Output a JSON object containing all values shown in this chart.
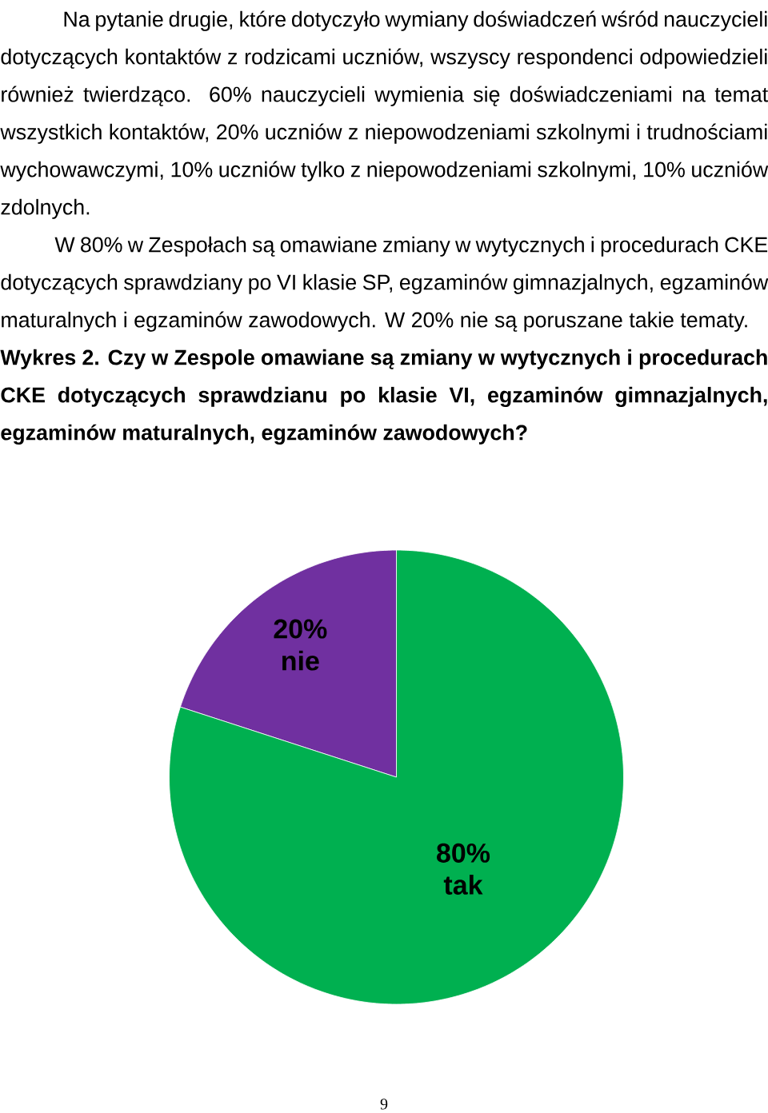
{
  "chart_data": {
    "type": "pie",
    "title": "Wykres 2. Czy w Zespole omawiane są zmiany w wytycznych i procedurach CKE dotyczących sprawdzianu po klasie VI, egzaminów gimnazjalnych, egzaminów maturalnych, egzaminów zawodowych?",
    "categories": [
      "nie",
      "tak"
    ],
    "values": [
      20,
      80
    ],
    "colors": [
      "#7030a0",
      "#00b050"
    ],
    "value_labels": [
      "20%",
      "80%"
    ],
    "annotations": [
      "Na pytanie drugie, które dotyczyło wymiany doświadczeń wśród nauczycieli dotyczących kontaktów z rodzicami uczniów, wszyscy respondenci odpowiedzieli również twierdząco. 60% nauczycieli wymienia się doświadczeniami na temat wszystkich kontaktów, 20% uczniów z niepowodzeniami szkolnymi i trudnościami wychowawczymi, 10% uczniów tylko z niepowodzeniami szkolnymi, 10% uczniów zdolnych.",
      "W 80% w Zespołach są omawiane zmiany w wytycznych i procedurach CKE dotyczących sprawdziany po VI klasie SP, egzaminów gimnazjalnych, egzaminów maturalnych i egzaminów zawodowych. W 20% nie są poruszane takie tematy.",
      "9"
    ]
  }
}
